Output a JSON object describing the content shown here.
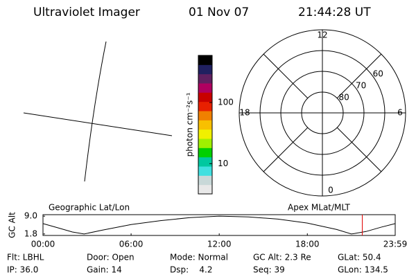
{
  "header": {
    "title": "Ultraviolet Imager",
    "date": "01 Nov 07",
    "time": "21:44:28 UT"
  },
  "colorbar": {
    "label": "photon cm⁻²s⁻¹",
    "log": true,
    "range": [
      3.2,
      590
    ],
    "ticks": [
      10,
      100
    ],
    "colors": [
      "#e8e8e8",
      "#c8d8d8",
      "#40e0e0",
      "#00c8a0",
      "#00d000",
      "#a0f000",
      "#f0f000",
      "#f8c000",
      "#f08000",
      "#e82000",
      "#c80000",
      "#b00060",
      "#602060",
      "#202060",
      "#000000"
    ]
  },
  "polar_grid": {
    "rlim": [
      90,
      50
    ],
    "rings": [
      60,
      70,
      80
    ],
    "mlt_labels": [
      12,
      18,
      0,
      6
    ]
  },
  "chart_data": {
    "type": "line",
    "title": "Geographic Lat/Lon",
    "subtitle": "Apex MLat/MLT",
    "ylabel": "GC Alt",
    "x": [
      0,
      1,
      2,
      2.8,
      4,
      6,
      8,
      10,
      12,
      14,
      16,
      18,
      20,
      21,
      22,
      23,
      23.983
    ],
    "series": [
      {
        "color": "#000000",
        "values": [
          6.0,
          4.3,
          2.6,
          1.8,
          3.3,
          5.6,
          7.2,
          8.4,
          9.0,
          8.7,
          7.8,
          6.2,
          3.6,
          1.8,
          2.8,
          4.5,
          6.0
        ]
      }
    ],
    "xlim": [
      0,
      23.983
    ],
    "ylim": [
      1.2,
      9.6
    ],
    "xticks": [
      {
        "value": 0,
        "label": "00:00"
      },
      {
        "value": 6,
        "label": "06:00"
      },
      {
        "value": 12,
        "label": "12:00"
      },
      {
        "value": 18,
        "label": "18:00"
      },
      {
        "value": 23.983,
        "label": "23:59"
      }
    ],
    "yticks": [
      {
        "value": 1.8,
        "label": "1.8"
      },
      {
        "value": 9.0,
        "label": "9.0"
      }
    ],
    "marker_x": 21.74,
    "marker_color": "#e00000"
  },
  "info": {
    "rows": [
      [
        "Flt: LBHL",
        "Door: Open",
        "Mode: Normal",
        "GC Alt: 2.3 Re",
        "GLat: 50.4"
      ],
      [
        "IP: 36.0",
        "Gain: 14",
        "Dsp:    4.2",
        "Seq: 39",
        "GLon: 134.5"
      ]
    ]
  }
}
